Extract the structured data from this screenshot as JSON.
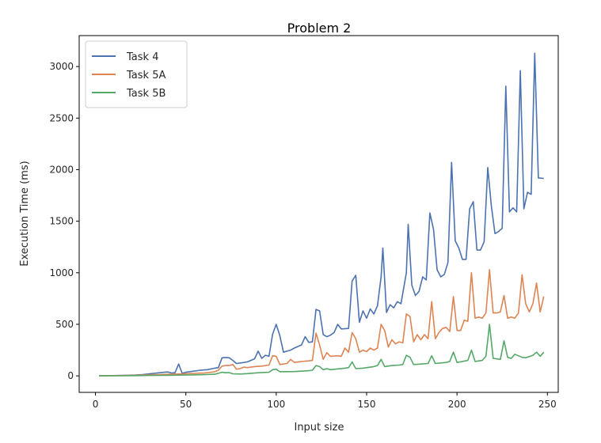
{
  "chart_data": {
    "type": "line",
    "title": "Problem 2",
    "xlabel": "Input size",
    "ylabel": "Execution Time (ms)",
    "xlim": [
      -9,
      256
    ],
    "ylim": [
      -160,
      3300
    ],
    "xticks": [
      0,
      50,
      100,
      150,
      200,
      250
    ],
    "yticks": [
      0,
      500,
      1000,
      1500,
      2000,
      2500,
      3000
    ],
    "legend_position": "upper left",
    "grid": false,
    "series": [
      {
        "name": "Task 4",
        "color": "#4c72b0",
        "points": [
          [
            2,
            1
          ],
          [
            6,
            2
          ],
          [
            10,
            3
          ],
          [
            14,
            4
          ],
          [
            18,
            6
          ],
          [
            22,
            8
          ],
          [
            26,
            12
          ],
          [
            30,
            20
          ],
          [
            34,
            28
          ],
          [
            38,
            35
          ],
          [
            40,
            38
          ],
          [
            42,
            28
          ],
          [
            44,
            30
          ],
          [
            46,
            115
          ],
          [
            48,
            25
          ],
          [
            50,
            35
          ],
          [
            54,
            45
          ],
          [
            58,
            55
          ],
          [
            62,
            60
          ],
          [
            66,
            75
          ],
          [
            68,
            80
          ],
          [
            70,
            175
          ],
          [
            72,
            178
          ],
          [
            74,
            175
          ],
          [
            76,
            150
          ],
          [
            78,
            120
          ],
          [
            80,
            125
          ],
          [
            84,
            135
          ],
          [
            88,
            165
          ],
          [
            90,
            240
          ],
          [
            92,
            170
          ],
          [
            94,
            200
          ],
          [
            96,
            190
          ],
          [
            98,
            405
          ],
          [
            100,
            500
          ],
          [
            102,
            390
          ],
          [
            104,
            230
          ],
          [
            106,
            240
          ],
          [
            108,
            250
          ],
          [
            110,
            270
          ],
          [
            114,
            300
          ],
          [
            116,
            380
          ],
          [
            118,
            325
          ],
          [
            120,
            330
          ],
          [
            122,
            645
          ],
          [
            124,
            630
          ],
          [
            126,
            400
          ],
          [
            128,
            380
          ],
          [
            130,
            395
          ],
          [
            132,
            420
          ],
          [
            134,
            500
          ],
          [
            136,
            455
          ],
          [
            140,
            460
          ],
          [
            142,
            920
          ],
          [
            144,
            975
          ],
          [
            146,
            520
          ],
          [
            148,
            630
          ],
          [
            150,
            560
          ],
          [
            152,
            650
          ],
          [
            154,
            600
          ],
          [
            156,
            680
          ],
          [
            158,
            960
          ],
          [
            159,
            1240
          ],
          [
            161,
            615
          ],
          [
            163,
            690
          ],
          [
            165,
            660
          ],
          [
            167,
            720
          ],
          [
            169,
            700
          ],
          [
            172,
            1000
          ],
          [
            173,
            1470
          ],
          [
            175,
            880
          ],
          [
            177,
            780
          ],
          [
            179,
            820
          ],
          [
            181,
            960
          ],
          [
            183,
            930
          ],
          [
            185,
            1580
          ],
          [
            187,
            1420
          ],
          [
            189,
            1030
          ],
          [
            191,
            960
          ],
          [
            193,
            985
          ],
          [
            195,
            1100
          ],
          [
            197,
            2070
          ],
          [
            199,
            1310
          ],
          [
            201,
            1240
          ],
          [
            203,
            1130
          ],
          [
            205,
            1130
          ],
          [
            207,
            1620
          ],
          [
            209,
            1690
          ],
          [
            211,
            1220
          ],
          [
            213,
            1220
          ],
          [
            215,
            1300
          ],
          [
            217,
            2020
          ],
          [
            219,
            1650
          ],
          [
            221,
            1380
          ],
          [
            223,
            1400
          ],
          [
            225,
            1430
          ],
          [
            227,
            2810
          ],
          [
            229,
            1590
          ],
          [
            231,
            1630
          ],
          [
            233,
            1590
          ],
          [
            235,
            2960
          ],
          [
            237,
            1620
          ],
          [
            239,
            1780
          ],
          [
            241,
            1760
          ],
          [
            243,
            3130
          ],
          [
            245,
            1920
          ],
          [
            248,
            1915
          ]
        ]
      },
      {
        "name": "Task 5A",
        "color": "#dd8452",
        "points": [
          [
            2,
            1
          ],
          [
            10,
            2
          ],
          [
            20,
            4
          ],
          [
            30,
            10
          ],
          [
            40,
            15
          ],
          [
            46,
            18
          ],
          [
            50,
            20
          ],
          [
            60,
            28
          ],
          [
            66,
            40
          ],
          [
            68,
            55
          ],
          [
            70,
            95
          ],
          [
            72,
            100
          ],
          [
            74,
            100
          ],
          [
            76,
            110
          ],
          [
            78,
            65
          ],
          [
            80,
            70
          ],
          [
            82,
            85
          ],
          [
            84,
            80
          ],
          [
            88,
            90
          ],
          [
            92,
            95
          ],
          [
            96,
            105
          ],
          [
            98,
            195
          ],
          [
            100,
            190
          ],
          [
            102,
            110
          ],
          [
            106,
            120
          ],
          [
            108,
            160
          ],
          [
            110,
            130
          ],
          [
            114,
            140
          ],
          [
            118,
            145
          ],
          [
            120,
            150
          ],
          [
            122,
            415
          ],
          [
            124,
            300
          ],
          [
            126,
            160
          ],
          [
            128,
            225
          ],
          [
            130,
            190
          ],
          [
            134,
            195
          ],
          [
            136,
            190
          ],
          [
            138,
            270
          ],
          [
            140,
            230
          ],
          [
            142,
            420
          ],
          [
            144,
            360
          ],
          [
            146,
            230
          ],
          [
            148,
            250
          ],
          [
            150,
            235
          ],
          [
            152,
            270
          ],
          [
            154,
            250
          ],
          [
            156,
            270
          ],
          [
            158,
            500
          ],
          [
            160,
            440
          ],
          [
            162,
            280
          ],
          [
            164,
            350
          ],
          [
            166,
            310
          ],
          [
            168,
            330
          ],
          [
            170,
            320
          ],
          [
            172,
            600
          ],
          [
            174,
            575
          ],
          [
            176,
            330
          ],
          [
            178,
            400
          ],
          [
            180,
            350
          ],
          [
            182,
            400
          ],
          [
            184,
            360
          ],
          [
            186,
            720
          ],
          [
            188,
            360
          ],
          [
            190,
            420
          ],
          [
            192,
            460
          ],
          [
            194,
            470
          ],
          [
            196,
            430
          ],
          [
            198,
            770
          ],
          [
            200,
            440
          ],
          [
            202,
            440
          ],
          [
            204,
            540
          ],
          [
            206,
            530
          ],
          [
            208,
            1000
          ],
          [
            210,
            560
          ],
          [
            212,
            570
          ],
          [
            214,
            560
          ],
          [
            216,
            610
          ],
          [
            218,
            1030
          ],
          [
            220,
            610
          ],
          [
            222,
            610
          ],
          [
            224,
            620
          ],
          [
            226,
            780
          ],
          [
            228,
            560
          ],
          [
            230,
            570
          ],
          [
            232,
            560
          ],
          [
            234,
            610
          ],
          [
            236,
            980
          ],
          [
            238,
            700
          ],
          [
            240,
            620
          ],
          [
            242,
            700
          ],
          [
            244,
            900
          ],
          [
            246,
            620
          ],
          [
            248,
            770
          ]
        ]
      },
      {
        "name": "Task 5B",
        "color": "#55a868",
        "points": [
          [
            2,
            0
          ],
          [
            10,
            1
          ],
          [
            20,
            2
          ],
          [
            30,
            4
          ],
          [
            40,
            6
          ],
          [
            50,
            8
          ],
          [
            60,
            12
          ],
          [
            66,
            16
          ],
          [
            68,
            25
          ],
          [
            70,
            35
          ],
          [
            72,
            30
          ],
          [
            74,
            32
          ],
          [
            76,
            20
          ],
          [
            80,
            18
          ],
          [
            84,
            22
          ],
          [
            90,
            30
          ],
          [
            96,
            35
          ],
          [
            98,
            60
          ],
          [
            100,
            65
          ],
          [
            102,
            40
          ],
          [
            110,
            42
          ],
          [
            118,
            50
          ],
          [
            120,
            55
          ],
          [
            122,
            100
          ],
          [
            124,
            90
          ],
          [
            126,
            60
          ],
          [
            128,
            70
          ],
          [
            130,
            60
          ],
          [
            138,
            75
          ],
          [
            140,
            80
          ],
          [
            142,
            135
          ],
          [
            144,
            70
          ],
          [
            148,
            75
          ],
          [
            154,
            90
          ],
          [
            156,
            100
          ],
          [
            158,
            160
          ],
          [
            160,
            90
          ],
          [
            164,
            100
          ],
          [
            168,
            105
          ],
          [
            170,
            110
          ],
          [
            172,
            200
          ],
          [
            174,
            180
          ],
          [
            176,
            110
          ],
          [
            180,
            115
          ],
          [
            184,
            120
          ],
          [
            186,
            195
          ],
          [
            188,
            120
          ],
          [
            194,
            130
          ],
          [
            196,
            140
          ],
          [
            198,
            230
          ],
          [
            200,
            130
          ],
          [
            206,
            150
          ],
          [
            208,
            250
          ],
          [
            210,
            140
          ],
          [
            214,
            150
          ],
          [
            216,
            190
          ],
          [
            218,
            500
          ],
          [
            220,
            170
          ],
          [
            224,
            160
          ],
          [
            226,
            340
          ],
          [
            228,
            180
          ],
          [
            230,
            170
          ],
          [
            232,
            210
          ],
          [
            236,
            180
          ],
          [
            238,
            175
          ],
          [
            242,
            200
          ],
          [
            244,
            230
          ],
          [
            246,
            190
          ],
          [
            248,
            230
          ]
        ]
      }
    ]
  }
}
